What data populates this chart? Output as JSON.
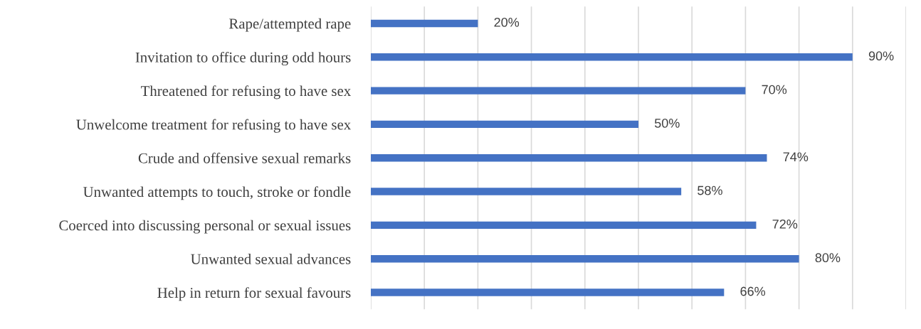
{
  "chart_data": {
    "type": "bar",
    "orientation": "horizontal",
    "categories": [
      "Rape/attempted rape",
      "Invitation to office during odd hours",
      "Threatened for refusing to have sex",
      "Unwelcome treatment for refusing to have sex",
      "Crude and offensive sexual remarks",
      "Unwanted attempts to touch, stroke or fondle",
      "Coerced into discussing personal or sexual issues",
      "Unwanted sexual advances",
      "Help in return for sexual favours"
    ],
    "values": [
      20,
      90,
      70,
      50,
      74,
      58,
      72,
      80,
      66
    ],
    "value_labels": [
      "20%",
      "90%",
      "70%",
      "50%",
      "74%",
      "58%",
      "72%",
      "80%",
      "66%"
    ],
    "color": "#4472c4",
    "xlim": [
      0,
      100
    ],
    "xticks": [
      {
        "value": 0,
        "label": null
      },
      {
        "value": 10,
        "label": null
      },
      {
        "value": 20,
        "label": null
      },
      {
        "value": 30,
        "label": null
      },
      {
        "value": 40,
        "label": null
      },
      {
        "value": 50,
        "label": null
      },
      {
        "value": 60,
        "label": null
      },
      {
        "value": 70,
        "label": null
      },
      {
        "value": 80,
        "label": null
      },
      {
        "value": 90,
        "label": null
      },
      {
        "value": 100,
        "label": null
      }
    ],
    "grid": "x",
    "tick_labels": "y"
  }
}
